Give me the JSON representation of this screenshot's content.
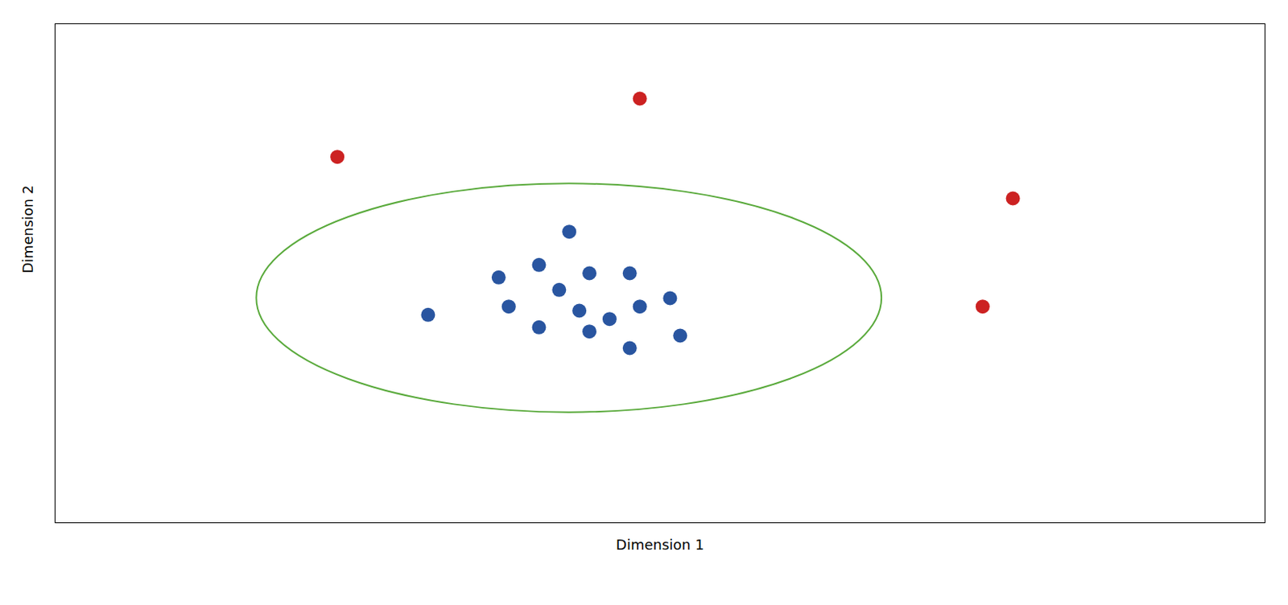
{
  "chart_data": {
    "type": "scatter",
    "xlabel": "Dimension 1",
    "ylabel": "Dimension 2",
    "series": [
      {
        "color": "#2955a0",
        "x": [
          4.8,
          4.4,
          5.3,
          5.7,
          5.0,
          4.5,
          5.2,
          5.8,
          5.5,
          4.8,
          5.3,
          6.2,
          3.7,
          5.1,
          6.1,
          5.7
        ],
        "y": [
          6.2,
          5.9,
          6.0,
          6.0,
          5.6,
          5.2,
          5.1,
          5.2,
          4.9,
          4.7,
          4.6,
          4.5,
          5.0,
          7.0,
          5.4,
          4.2
        ]
      },
      {
        "color": "#cc2222",
        "x": [
          2.8,
          5.8,
          9.5,
          9.2
        ],
        "y": [
          8.8,
          10.2,
          7.8,
          5.2
        ]
      }
    ],
    "ellipse": {
      "center": [
        5.1,
        5.4
      ],
      "width": 6.2,
      "height": 5.5,
      "angle": 0,
      "color": "#5aaa3c"
    },
    "xlim": [
      0,
      12
    ],
    "ylim": [
      0,
      12
    ],
    "tick_labels": false,
    "grid": false
  }
}
